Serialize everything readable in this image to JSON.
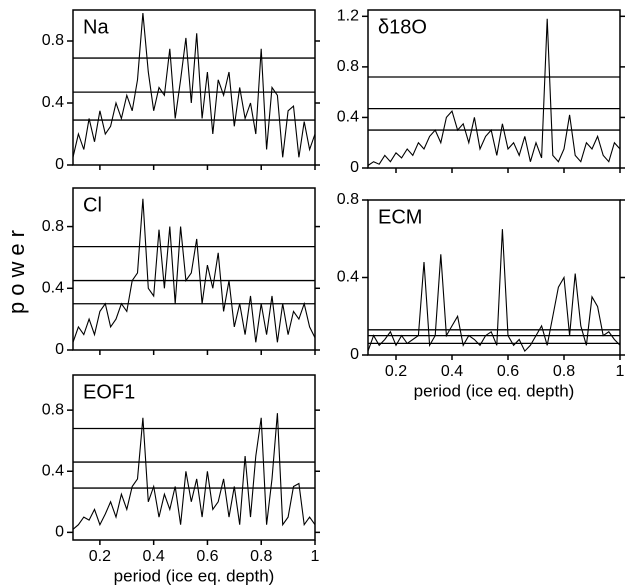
{
  "chart_data": [
    {
      "type": "line",
      "title": "Na",
      "color": "#000",
      "x": [
        0.1,
        0.12,
        0.14,
        0.16,
        0.18,
        0.2,
        0.22,
        0.24,
        0.26,
        0.28,
        0.3,
        0.32,
        0.34,
        0.36,
        0.38,
        0.4,
        0.42,
        0.44,
        0.46,
        0.48,
        0.5,
        0.52,
        0.54,
        0.56,
        0.58,
        0.6,
        0.62,
        0.64,
        0.66,
        0.68,
        0.7,
        0.72,
        0.74,
        0.76,
        0.78,
        0.8,
        0.82,
        0.84,
        0.86,
        0.88,
        0.9,
        0.92,
        0.94,
        0.96,
        0.98,
        1.0
      ],
      "values": [
        0.05,
        0.2,
        0.1,
        0.3,
        0.15,
        0.35,
        0.2,
        0.25,
        0.4,
        0.3,
        0.45,
        0.35,
        0.55,
        0.98,
        0.6,
        0.35,
        0.5,
        0.45,
        0.75,
        0.3,
        0.55,
        0.82,
        0.4,
        0.85,
        0.3,
        0.6,
        0.2,
        0.55,
        0.45,
        0.6,
        0.25,
        0.5,
        0.3,
        0.4,
        0.2,
        0.75,
        0.1,
        0.5,
        0.45,
        0.05,
        0.35,
        0.38,
        0.05,
        0.28,
        0.1,
        0.2
      ],
      "reference_lines": [
        0.69,
        0.47,
        0.29
      ],
      "xlim": [
        0.1,
        1.0
      ],
      "ylim": [
        0,
        1.0
      ],
      "yticks": [
        0,
        0.4,
        0.8
      ],
      "xticks": [
        0.2,
        0.4,
        0.6,
        0.8,
        1
      ],
      "xtick_labels": false
    },
    {
      "type": "line",
      "title": "δ18O",
      "color": "#000",
      "x": [
        0.1,
        0.12,
        0.14,
        0.16,
        0.18,
        0.2,
        0.22,
        0.24,
        0.26,
        0.28,
        0.3,
        0.32,
        0.34,
        0.36,
        0.38,
        0.4,
        0.42,
        0.44,
        0.46,
        0.48,
        0.5,
        0.52,
        0.54,
        0.56,
        0.58,
        0.6,
        0.62,
        0.64,
        0.66,
        0.68,
        0.7,
        0.72,
        0.74,
        0.76,
        0.78,
        0.8,
        0.82,
        0.84,
        0.86,
        0.88,
        0.9,
        0.92,
        0.94,
        0.96,
        0.98,
        1.0
      ],
      "values": [
        0.02,
        0.05,
        0.03,
        0.1,
        0.05,
        0.12,
        0.08,
        0.15,
        0.1,
        0.2,
        0.15,
        0.25,
        0.3,
        0.2,
        0.4,
        0.45,
        0.3,
        0.35,
        0.2,
        0.4,
        0.15,
        0.25,
        0.3,
        0.1,
        0.35,
        0.15,
        0.2,
        0.1,
        0.25,
        0.05,
        0.2,
        0.08,
        1.18,
        0.1,
        0.05,
        0.15,
        0.42,
        0.1,
        0.05,
        0.2,
        0.15,
        0.25,
        0.1,
        0.05,
        0.2,
        0.15
      ],
      "reference_lines": [
        0.72,
        0.47,
        0.3
      ],
      "xlim": [
        0.1,
        1.0
      ],
      "ylim": [
        0,
        1.25
      ],
      "yticks": [
        0,
        0.4,
        0.8,
        1.2
      ],
      "xticks": [
        0.2,
        0.4,
        0.6,
        0.8,
        1
      ],
      "xtick_labels": false
    },
    {
      "type": "line",
      "title": "Cl",
      "y_label": "power",
      "color": "#000",
      "x": [
        0.1,
        0.12,
        0.14,
        0.16,
        0.18,
        0.2,
        0.22,
        0.24,
        0.26,
        0.28,
        0.3,
        0.32,
        0.34,
        0.36,
        0.38,
        0.4,
        0.42,
        0.44,
        0.46,
        0.48,
        0.5,
        0.52,
        0.54,
        0.56,
        0.58,
        0.6,
        0.62,
        0.64,
        0.66,
        0.68,
        0.7,
        0.72,
        0.74,
        0.76,
        0.78,
        0.8,
        0.82,
        0.84,
        0.86,
        0.88,
        0.9,
        0.92,
        0.94,
        0.96,
        0.98,
        1.0
      ],
      "values": [
        0.05,
        0.15,
        0.1,
        0.2,
        0.1,
        0.25,
        0.3,
        0.15,
        0.2,
        0.3,
        0.25,
        0.45,
        0.5,
        0.98,
        0.4,
        0.35,
        0.78,
        0.4,
        0.8,
        0.3,
        0.8,
        0.45,
        0.5,
        0.72,
        0.3,
        0.55,
        0.4,
        0.63,
        0.25,
        0.45,
        0.15,
        0.3,
        0.1,
        0.35,
        0.05,
        0.3,
        0.1,
        0.35,
        0.05,
        0.3,
        0.1,
        0.25,
        0.2,
        0.3,
        0.15,
        0.08
      ],
      "reference_lines": [
        0.67,
        0.45,
        0.3
      ],
      "xlim": [
        0.1,
        1.0
      ],
      "ylim": [
        0,
        1.05
      ],
      "yticks": [
        0,
        0.4,
        0.8
      ],
      "xticks": [
        0.2,
        0.4,
        0.6,
        0.8,
        1
      ],
      "xtick_labels": false
    },
    {
      "type": "line",
      "title": "ECM",
      "x_label": "period (ice eq. depth)",
      "color": "#000",
      "x": [
        0.1,
        0.12,
        0.14,
        0.16,
        0.18,
        0.2,
        0.22,
        0.24,
        0.26,
        0.28,
        0.3,
        0.32,
        0.34,
        0.36,
        0.38,
        0.4,
        0.42,
        0.44,
        0.46,
        0.48,
        0.5,
        0.52,
        0.54,
        0.56,
        0.58,
        0.6,
        0.62,
        0.64,
        0.66,
        0.68,
        0.7,
        0.72,
        0.74,
        0.76,
        0.78,
        0.8,
        0.82,
        0.84,
        0.86,
        0.88,
        0.9,
        0.92,
        0.94,
        0.96,
        0.98,
        1.0
      ],
      "values": [
        0.02,
        0.1,
        0.05,
        0.08,
        0.12,
        0.05,
        0.1,
        0.06,
        0.08,
        0.1,
        0.48,
        0.05,
        0.1,
        0.52,
        0.1,
        0.15,
        0.2,
        0.05,
        0.1,
        0.08,
        0.05,
        0.1,
        0.12,
        0.05,
        0.65,
        0.1,
        0.05,
        0.08,
        0.02,
        0.05,
        0.1,
        0.15,
        0.05,
        0.2,
        0.35,
        0.4,
        0.1,
        0.42,
        0.15,
        0.05,
        0.3,
        0.25,
        0.1,
        0.12,
        0.08,
        0.05
      ],
      "reference_lines": [
        0.13,
        0.1,
        0.06
      ],
      "xlim": [
        0.1,
        1.0
      ],
      "ylim": [
        0,
        0.8
      ],
      "yticks": [
        0,
        0.4,
        0.8
      ],
      "xticks": [
        0.2,
        0.4,
        0.6,
        0.8,
        1
      ],
      "xtick_labels": true
    },
    {
      "type": "line",
      "title": "EOF1",
      "x_label": "period (ice eq. depth)",
      "color": "#000",
      "x": [
        0.1,
        0.12,
        0.14,
        0.16,
        0.18,
        0.2,
        0.22,
        0.24,
        0.26,
        0.28,
        0.3,
        0.32,
        0.34,
        0.36,
        0.38,
        0.4,
        0.42,
        0.44,
        0.46,
        0.48,
        0.5,
        0.52,
        0.54,
        0.56,
        0.58,
        0.6,
        0.62,
        0.64,
        0.66,
        0.68,
        0.7,
        0.72,
        0.74,
        0.76,
        0.78,
        0.8,
        0.82,
        0.84,
        0.86,
        0.88,
        0.9,
        0.92,
        0.94,
        0.96,
        0.98,
        1.0
      ],
      "values": [
        0.02,
        0.05,
        0.1,
        0.08,
        0.15,
        0.05,
        0.12,
        0.2,
        0.1,
        0.25,
        0.15,
        0.3,
        0.35,
        0.75,
        0.2,
        0.3,
        0.1,
        0.25,
        0.15,
        0.3,
        0.05,
        0.4,
        0.2,
        0.35,
        0.1,
        0.4,
        0.15,
        0.2,
        0.35,
        0.1,
        0.3,
        0.05,
        0.5,
        0.1,
        0.5,
        0.75,
        0.05,
        0.35,
        0.78,
        0.05,
        0.1,
        0.3,
        0.32,
        0.05,
        0.1,
        0.05
      ],
      "reference_lines": [
        0.68,
        0.46,
        0.29
      ],
      "xlim": [
        0.1,
        1.0
      ],
      "ylim": [
        -0.05,
        1.03
      ],
      "yticks": [
        0,
        0.4,
        0.8
      ],
      "xticks": [
        0.2,
        0.4,
        0.6,
        0.8,
        1
      ],
      "xtick_labels": true
    }
  ]
}
